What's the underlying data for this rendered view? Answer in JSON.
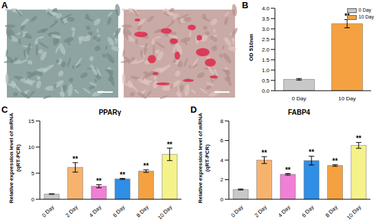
{
  "image_panel": {
    "panel_label": "A"
  },
  "chart_data": [
    {
      "type": "bar",
      "panel_label": "B",
      "y_label": "OD 510nm",
      "categories": [
        "0 Day",
        "10 Day"
      ],
      "values": [
        0.55,
        3.25
      ],
      "errors": [
        0.04,
        0.2
      ],
      "colors": [
        "#c8c8c8",
        "#f5a142"
      ],
      "significance": [
        null,
        "**"
      ],
      "ylim": [
        0,
        4
      ],
      "yticks": [
        {
          "value": 0,
          "label": "0.0"
        },
        {
          "value": 0.5,
          "label": "0.5"
        },
        {
          "value": 1,
          "label": "1.0"
        },
        {
          "value": 1.5,
          "label": "1.5"
        },
        {
          "value": 2,
          "label": "2.0"
        },
        {
          "value": 2.5,
          "label": "2.5"
        },
        {
          "value": 3,
          "label": "3.0"
        },
        {
          "value": 3.5,
          "label": "3.5"
        },
        {
          "value": 4,
          "label": "4.0"
        }
      ],
      "legend": "upper right"
    },
    {
      "type": "bar",
      "panel_label": "C",
      "title": "PPARγ",
      "y_label": "Relative expression level of mRNA\n(qRT-PCR)",
      "categories": [
        "0 Day",
        "2 Day",
        "4 Day",
        "6 Day",
        "8 Day",
        "10 Day"
      ],
      "values": [
        1.0,
        6.1,
        2.5,
        3.9,
        5.4,
        8.6
      ],
      "errors": [
        0.05,
        0.9,
        0.3,
        0.1,
        0.25,
        1.2
      ],
      "colors": [
        "#c8c8c8",
        "#f7b36e",
        "#f07fd6",
        "#2f8ee6",
        "#f5a142",
        "#f6f28a"
      ],
      "significance": [
        null,
        "**",
        "**",
        "**",
        "**",
        "**"
      ],
      "ylim": [
        0,
        15
      ],
      "yticks": [
        0,
        5,
        10,
        15
      ]
    },
    {
      "type": "bar",
      "panel_label": "D",
      "title": "FABP4",
      "y_label": "Relative expression level of mRNA\n(qRT-PCR)",
      "categories": [
        "0 Day",
        "2 Day",
        "4 Day",
        "6 Day",
        "8 Day",
        "10 Day"
      ],
      "values": [
        1.0,
        4.0,
        2.55,
        3.95,
        3.45,
        5.5
      ],
      "errors": [
        0.05,
        0.35,
        0.08,
        0.45,
        0.08,
        0.3
      ],
      "colors": [
        "#c8c8c8",
        "#f7b36e",
        "#f07fd6",
        "#2f8ee6",
        "#f5a142",
        "#f6f28a"
      ],
      "significance": [
        null,
        "**",
        "**",
        "**",
        "**",
        "**"
      ],
      "ylim": [
        0,
        8
      ],
      "yticks": [
        0,
        2,
        4,
        6,
        8
      ]
    }
  ]
}
